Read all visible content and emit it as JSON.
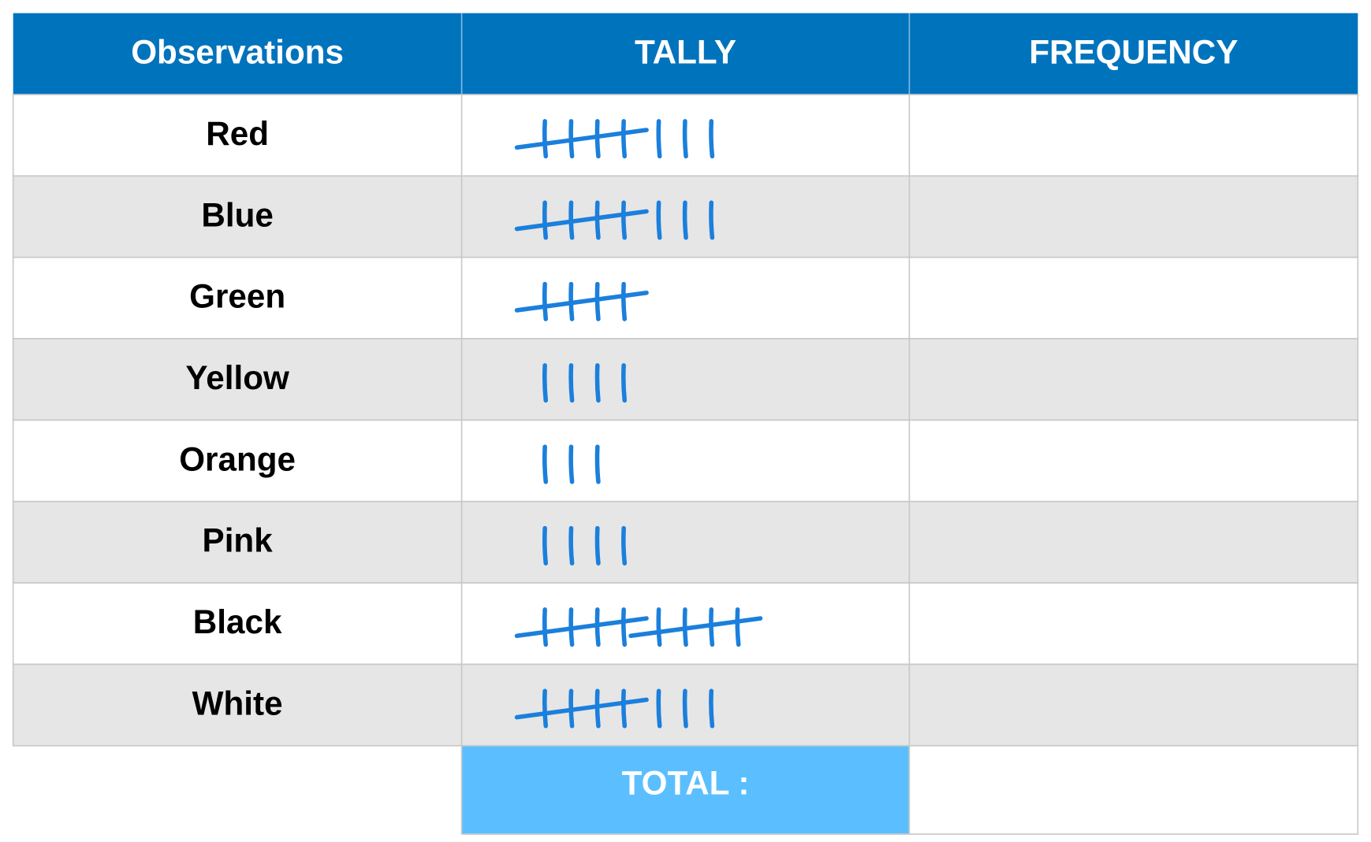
{
  "table": {
    "headers": [
      "Observations",
      "TALLY",
      "FREQUENCY"
    ],
    "rows": [
      {
        "label": "Red",
        "tally": 8
      },
      {
        "label": "Blue",
        "tally": 8
      },
      {
        "label": "Green",
        "tally": 5
      },
      {
        "label": "Yellow",
        "tally": 4
      },
      {
        "label": "Orange",
        "tally": 3
      },
      {
        "label": "Pink",
        "tally": 4
      },
      {
        "label": "Black",
        "tally": 10
      },
      {
        "label": "White",
        "tally": 8
      }
    ],
    "total_label": "TOTAL :"
  }
}
